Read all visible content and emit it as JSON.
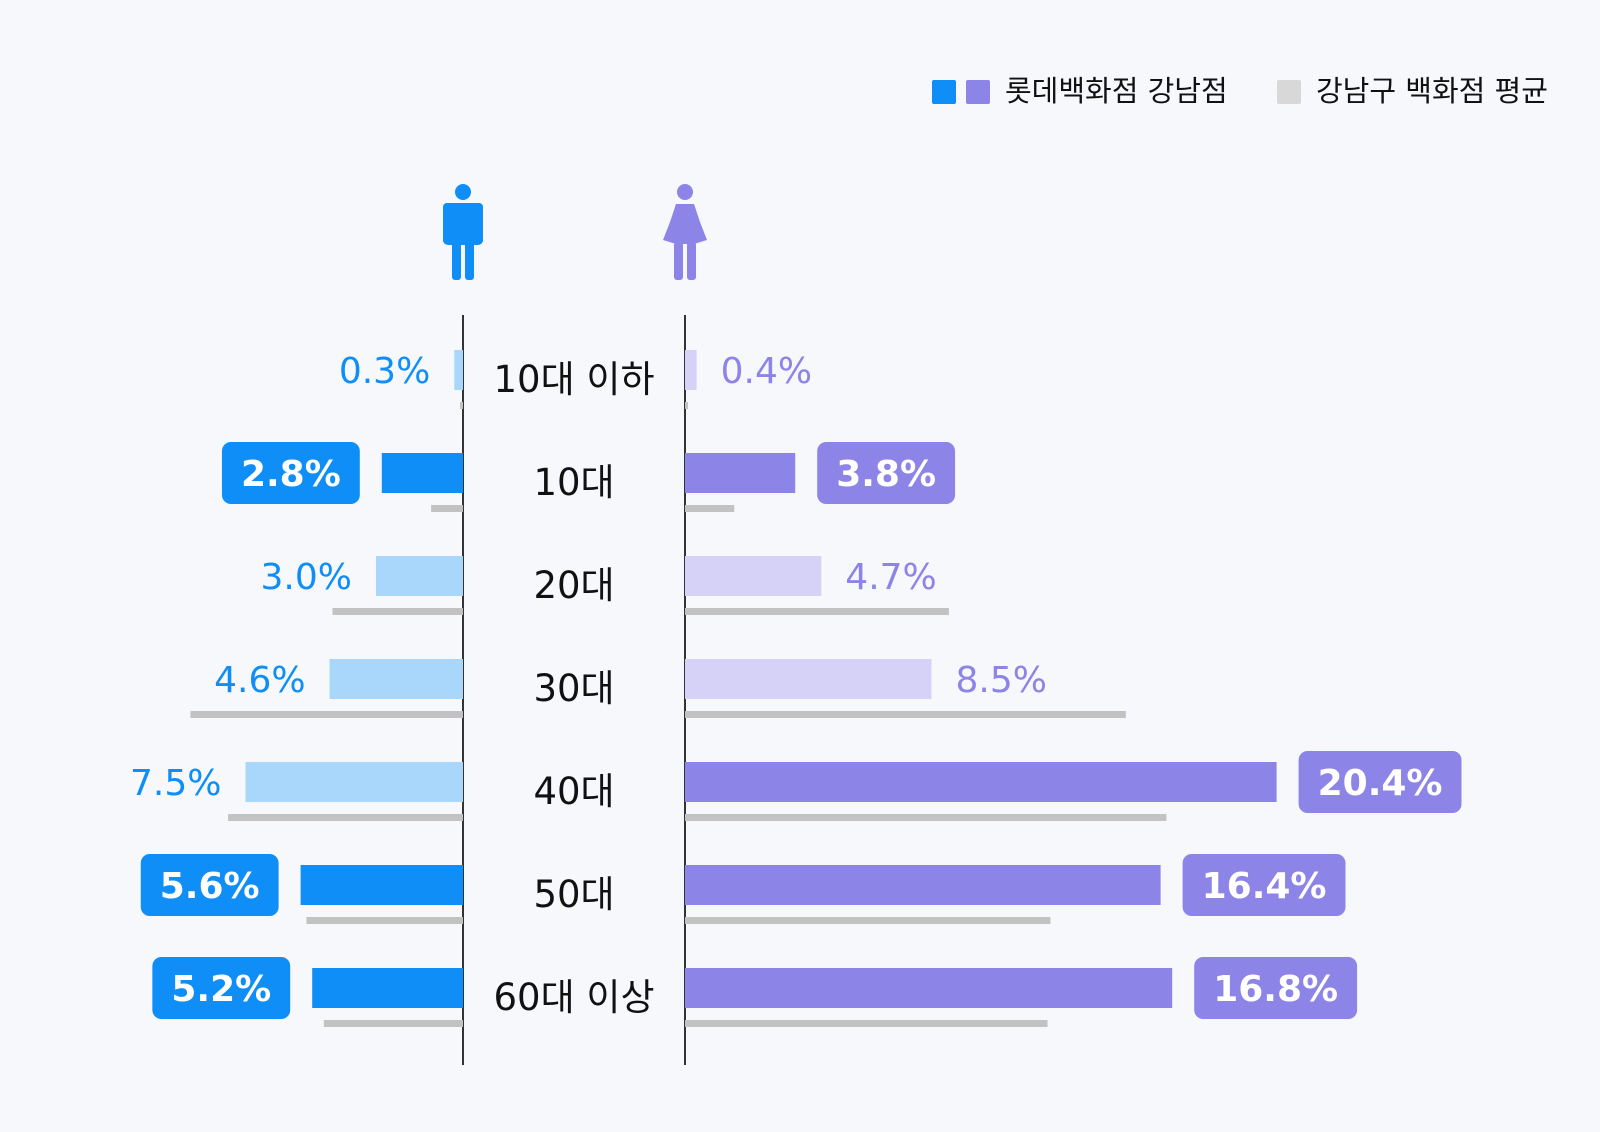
{
  "legend": {
    "primary_label": "롯데백화점 강남점",
    "secondary_label": "강남구 백화점 평균"
  },
  "icons": {
    "male": "male-person-icon",
    "female": "female-person-icon"
  },
  "colors": {
    "male_strong": "#0f8ef7",
    "male_light": "#a9d6fb",
    "female_strong": "#8d84e8",
    "female_light": "#d6d2f7",
    "average": "#c2c2c2",
    "text_dark": "#111111",
    "axis": "#333333"
  },
  "chart_data": {
    "type": "bar",
    "subtype": "population-pyramid",
    "categories": [
      "10대 이하",
      "10대",
      "20대",
      "30대",
      "40대",
      "50대",
      "60대 이상"
    ],
    "series": [
      {
        "name": "롯데백화점 강남점",
        "gender": "male",
        "values": [
          0.3,
          2.8,
          3.0,
          4.6,
          7.5,
          5.6,
          5.2
        ],
        "labels": [
          "0.3%",
          "2.8%",
          "3.0%",
          "4.6%",
          "7.5%",
          "5.6%",
          "5.2%"
        ],
        "highlighted": [
          false,
          true,
          false,
          false,
          false,
          true,
          true
        ]
      },
      {
        "name": "롯데백화점 강남점",
        "gender": "female",
        "values": [
          0.4,
          3.8,
          4.7,
          8.5,
          20.4,
          16.4,
          16.8
        ],
        "labels": [
          "0.4%",
          "3.8%",
          "4.7%",
          "8.5%",
          "20.4%",
          "16.4%",
          "16.8%"
        ],
        "highlighted": [
          false,
          true,
          false,
          false,
          true,
          true,
          true
        ]
      },
      {
        "name": "강남구 백화점 평균",
        "gender": "male",
        "values": [
          0.1,
          1.1,
          4.5,
          9.4,
          8.1,
          5.4,
          4.8
        ]
      },
      {
        "name": "강남구 백화점 평균",
        "gender": "female",
        "values": [
          0.1,
          1.7,
          9.1,
          15.2,
          16.6,
          12.6,
          12.5
        ]
      }
    ]
  }
}
